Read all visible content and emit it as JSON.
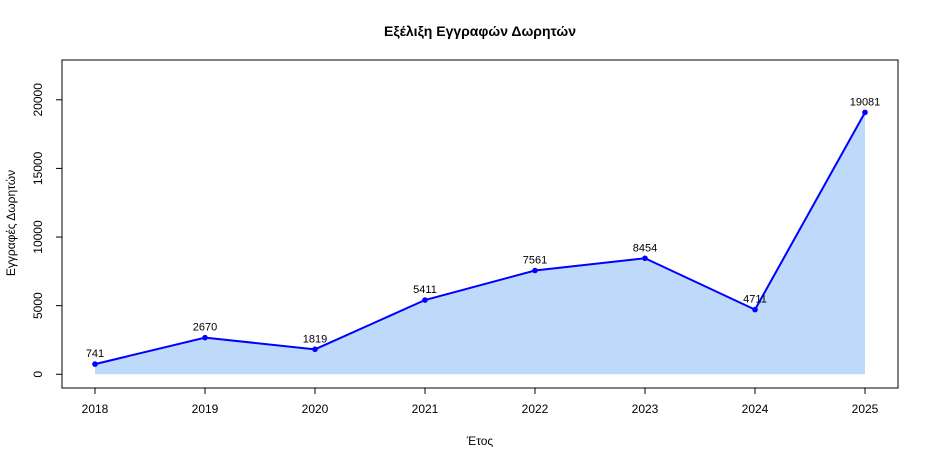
{
  "chart_data": {
    "type": "area",
    "title": "Εξέλιξη Εγγραφών Δωρητών",
    "xlabel": "Έτος",
    "ylabel": "Εγγραφές Δωρητών",
    "x": [
      2018,
      2019,
      2020,
      2021,
      2022,
      2023,
      2024,
      2025
    ],
    "series": [
      {
        "values": [
          741,
          2670,
          1819,
          5411,
          7561,
          8454,
          4711,
          19081
        ]
      }
    ],
    "data_labels": [
      "741",
      "2670",
      "1819",
      "5411",
      "7561",
      "8454",
      "4711",
      "19081"
    ],
    "x_ticks": [
      "2018",
      "2019",
      "2020",
      "2021",
      "2022",
      "2023",
      "2024",
      "2025"
    ],
    "y_ticks": [
      0,
      5000,
      10000,
      15000,
      20000
    ],
    "y_tick_labels": [
      "0",
      "5000",
      "10000",
      "15000",
      "20000"
    ],
    "xlim": [
      2017.7,
      2025.3
    ],
    "ylim": [
      -1000,
      22900
    ],
    "grid": false,
    "colors": {
      "line": "#0000ff",
      "fill": "#bfd9fb",
      "frame": "#000000"
    }
  }
}
